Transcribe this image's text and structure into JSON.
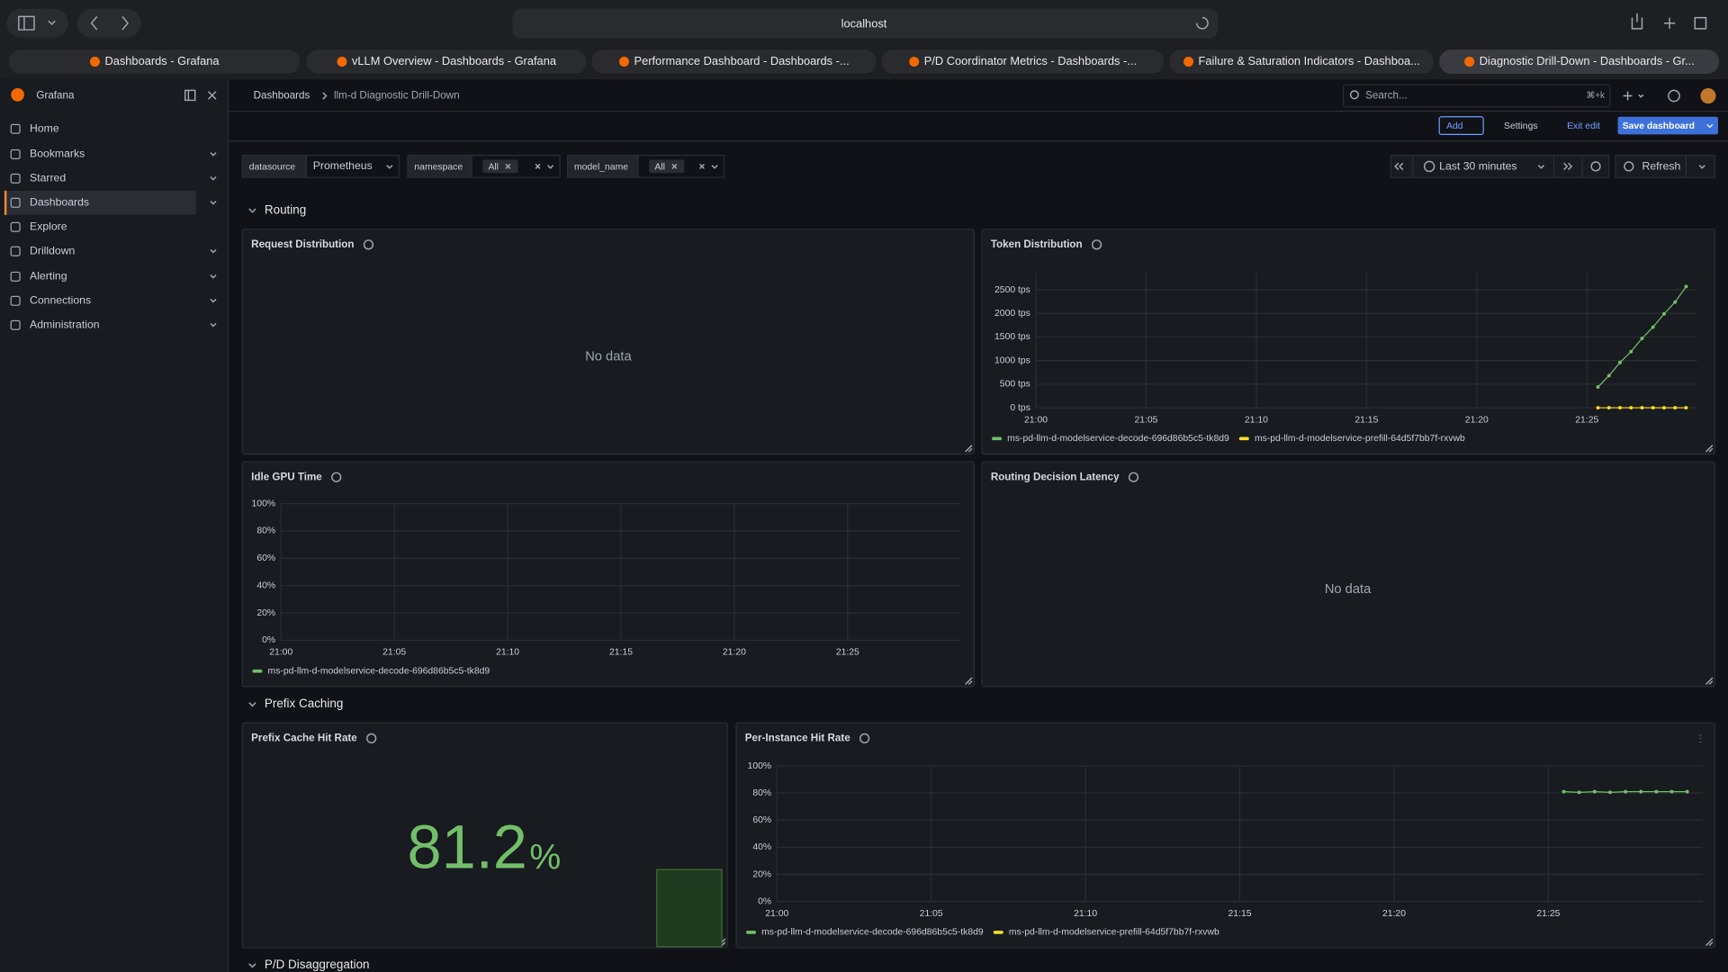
{
  "browser": {
    "url": "localhost",
    "tabs": [
      "Dashboards - Grafana",
      "vLLM Overview - Dashboards - Grafana",
      "Performance Dashboard - Dashboards -...",
      "P/D Coordinator Metrics - Dashboards -...",
      "Failure & Saturation Indicators - Dashboa...",
      "Diagnostic Drill-Down - Dashboards - Gr..."
    ]
  },
  "sidebar": {
    "brand": "Grafana",
    "nav": [
      {
        "label": "Home"
      },
      {
        "label": "Bookmarks",
        "expand": true
      },
      {
        "label": "Starred",
        "expand": true
      },
      {
        "label": "Dashboards",
        "expand": true,
        "active": true
      },
      {
        "label": "Explore"
      },
      {
        "label": "Drilldown",
        "expand": true
      },
      {
        "label": "Alerting",
        "expand": true
      },
      {
        "label": "Connections",
        "expand": true
      },
      {
        "label": "Administration",
        "expand": true
      }
    ]
  },
  "breadcrumbs": [
    "Dashboards",
    "llm-d Diagnostic Drill-Down"
  ],
  "search": {
    "placeholder": "Search...",
    "shortcut": "⌘+k"
  },
  "toolbar": {
    "add": "Add",
    "settings": "Settings",
    "exit": "Exit edit",
    "save": "Save dashboard"
  },
  "variables": [
    {
      "label": "datasource",
      "value": "Prometheus"
    },
    {
      "label": "namespace",
      "value": "All"
    },
    {
      "label": "model_name",
      "value": "All"
    }
  ],
  "time_picker": {
    "range": "Last 30 minutes",
    "refresh": "Refresh"
  },
  "rows": [
    "Routing",
    "Prefix Caching",
    "P/D Disaggregation"
  ],
  "panels": {
    "request_distribution": {
      "title": "Request Distribution",
      "message": "No data"
    },
    "routing_latency": {
      "title": "Routing Decision Latency",
      "message": "No data"
    },
    "prefix_cache": {
      "title": "Prefix Cache Hit Rate",
      "value": 81.2,
      "unit": "%",
      "color": "#73bf69"
    }
  },
  "chart_data": [
    {
      "type": "line",
      "title": "Token Distribution",
      "x": [
        "21:25:30",
        "21:26:00",
        "21:26:30",
        "21:27:00",
        "21:27:30",
        "21:28:00",
        "21:28:30",
        "21:29:00",
        "21:29:30"
      ],
      "series": [
        {
          "name": "ms-pd-llm-d-modelservice-decode-696d86b5c5-tk8d9",
          "color": "#73bf69",
          "values": [
            440,
            680,
            960,
            1190,
            1470,
            1710,
            1990,
            2240,
            2570
          ]
        },
        {
          "name": "ms-pd-llm-d-modelservice-prefill-64d5f7bb7f-rxvwb",
          "color": "#fade2a",
          "values": [
            0,
            0,
            0,
            0,
            0,
            0,
            0,
            0,
            0
          ]
        }
      ],
      "xlim": [
        "21:00:00",
        "21:30:00"
      ],
      "xticks": [
        "21:00",
        "21:05",
        "21:10",
        "21:15",
        "21:20",
        "21:25"
      ],
      "ylim": [
        0,
        2850
      ],
      "yticks": [
        {
          "value": 0,
          "label": "0 tps"
        },
        {
          "value": 500,
          "label": "500 tps"
        },
        {
          "value": 1000,
          "label": "1000 tps"
        },
        {
          "value": 1500,
          "label": "1500 tps"
        },
        {
          "value": 2000,
          "label": "2000 tps"
        },
        {
          "value": 2500,
          "label": "2500 tps"
        }
      ],
      "grid": true
    },
    {
      "type": "line",
      "title": "Idle GPU Time",
      "series": [
        {
          "name": "ms-pd-llm-d-modelservice-decode-696d86b5c5-tk8d9",
          "color": "#73bf69"
        }
      ],
      "xlim": [
        "21:00:00",
        "21:30:00"
      ],
      "xticks": [
        "21:00",
        "21:05",
        "21:10",
        "21:15",
        "21:20",
        "21:25"
      ],
      "ylim": [
        0,
        100
      ],
      "yticks": [
        {
          "value": 0,
          "label": "0%"
        },
        {
          "value": 20,
          "label": "20%"
        },
        {
          "value": 40,
          "label": "40%"
        },
        {
          "value": 60,
          "label": "60%"
        },
        {
          "value": 80,
          "label": "80%"
        },
        {
          "value": 100,
          "label": "100%"
        }
      ],
      "grid": true
    },
    {
      "type": "line",
      "title": "Per-Instance Hit Rate",
      "x": [
        "21:25:30",
        "21:26:00",
        "21:26:30",
        "21:27:00",
        "21:27:30",
        "21:28:00",
        "21:28:30",
        "21:29:00",
        "21:29:30"
      ],
      "series": [
        {
          "name": "ms-pd-llm-d-modelservice-decode-696d86b5c5-tk8d9",
          "color": "#73bf69",
          "values": [
            81,
            80.5,
            81,
            80.5,
            81,
            81,
            81,
            81,
            81
          ]
        },
        {
          "name": "ms-pd-llm-d-modelservice-prefill-64d5f7bb7f-rxvwb",
          "color": "#fade2a"
        }
      ],
      "xlim": [
        "21:00:00",
        "21:30:00"
      ],
      "xticks": [
        "21:00",
        "21:05",
        "21:10",
        "21:15",
        "21:20",
        "21:25"
      ],
      "ylim": [
        0,
        100
      ],
      "yticks": [
        {
          "value": 0,
          "label": "0%"
        },
        {
          "value": 20,
          "label": "20%"
        },
        {
          "value": 40,
          "label": "40%"
        },
        {
          "value": 60,
          "label": "60%"
        },
        {
          "value": 80,
          "label": "80%"
        },
        {
          "value": 100,
          "label": "100%"
        }
      ],
      "grid": true
    }
  ]
}
